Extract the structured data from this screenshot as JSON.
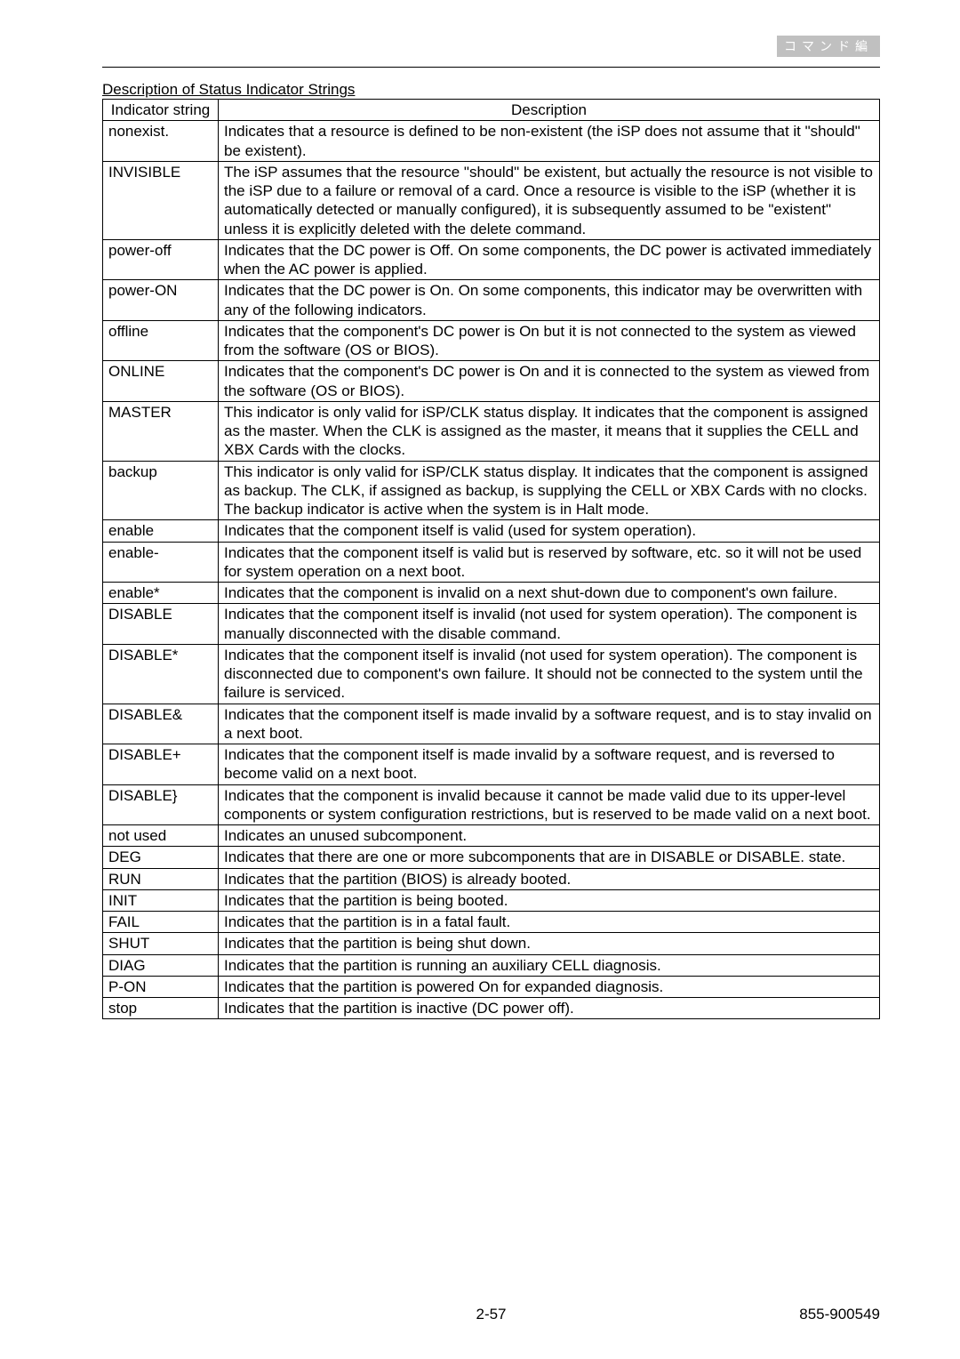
{
  "header_tag": "コマンド編",
  "caption": "Description of Status Indicator Strings",
  "columns": [
    "Indicator string",
    "Description"
  ],
  "rows": [
    {
      "k": "nonexist.",
      "v": "Indicates that a resource is defined to be non-existent (the iSP does not assume that it \"should\" be existent)."
    },
    {
      "k": "INVISIBLE",
      "v": "The iSP assumes that the resource \"should\" be existent, but actually the resource is not visible to the iSP due to a failure or removal of a card. Once a resource is visible to the iSP (whether it is automatically detected or manually configured), it is subsequently assumed to be \"existent\" unless it is explicitly deleted with the delete command."
    },
    {
      "k": "power-off",
      "v": "Indicates that the DC power is Off. On some components, the DC power is activated immediately when the AC power is applied."
    },
    {
      "k": "power-ON",
      "v": "Indicates that the DC power is On. On some components, this indicator may be overwritten with any of the following indicators."
    },
    {
      "k": "offline",
      "v": "Indicates that the component's DC power is On but it is not connected to the system as viewed from the software (OS or BIOS)."
    },
    {
      "k": "ONLINE",
      "v": "Indicates that the component's DC power is On and it is connected to the system as viewed from the software (OS or BIOS)."
    },
    {
      "k": "MASTER",
      "v": "This indicator is only valid for iSP/CLK status display. It indicates that the component is assigned as the master. When the CLK is assigned as the master, it means that it supplies the CELL and XBX Cards with the clocks."
    },
    {
      "k": "backup",
      "v": "This indicator is only valid for iSP/CLK status display. It indicates that the component is assigned as backup. The CLK, if assigned as backup, is supplying the CELL or XBX Cards with no clocks. The backup indicator is active when the system is in Halt mode."
    },
    {
      "k": "enable",
      "v": "Indicates that the component itself is valid (used for system operation)."
    },
    {
      "k": "enable-",
      "v": "Indicates that the component itself is valid but is reserved by software, etc. so it will not be used for system operation on a next boot."
    },
    {
      "k": "enable*",
      "v": "Indicates that the component is invalid on a next shut-down due to component's own failure."
    },
    {
      "k": "DISABLE",
      "v": "Indicates that the component itself is invalid (not used for system operation). The component is manually disconnected with the disable command."
    },
    {
      "k": "DISABLE*",
      "v": "Indicates that the component itself is invalid (not used for system operation). The component is disconnected due to component's own failure. It should not be connected to the system until the failure is serviced."
    },
    {
      "k": "DISABLE&",
      "v": "Indicates that the component itself is made invalid by a software request, and is to stay invalid on a next boot."
    },
    {
      "k": "DISABLE+",
      "v": "Indicates that the component itself is made invalid by a software request, and is reversed to become valid on a next boot."
    },
    {
      "k": "DISABLE}",
      "v": "Indicates that the component is invalid because it cannot be made valid due to its upper-level components or system configuration restrictions, but is reserved to be made valid on a next boot."
    },
    {
      "k": "not used",
      "v": "Indicates an unused subcomponent."
    },
    {
      "k": "DEG",
      "v": "Indicates that there are one or more subcomponents that are in DISABLE or DISABLE. state."
    },
    {
      "k": "RUN",
      "v": "Indicates that the partition (BIOS) is already booted."
    },
    {
      "k": "INIT",
      "v": "Indicates that the partition is being booted."
    },
    {
      "k": "FAIL",
      "v": "Indicates that the partition is in a fatal fault."
    },
    {
      "k": "SHUT",
      "v": "Indicates that the partition is being shut down."
    },
    {
      "k": "DIAG",
      "v": "Indicates that the partition is running an auxiliary CELL diagnosis."
    },
    {
      "k": "P-ON",
      "v": "Indicates that the partition is powered On for expanded diagnosis."
    },
    {
      "k": "stop",
      "v": "Indicates that the partition is inactive (DC power off)."
    }
  ],
  "footer": {
    "page": "2-57",
    "doc": "855-900549"
  }
}
